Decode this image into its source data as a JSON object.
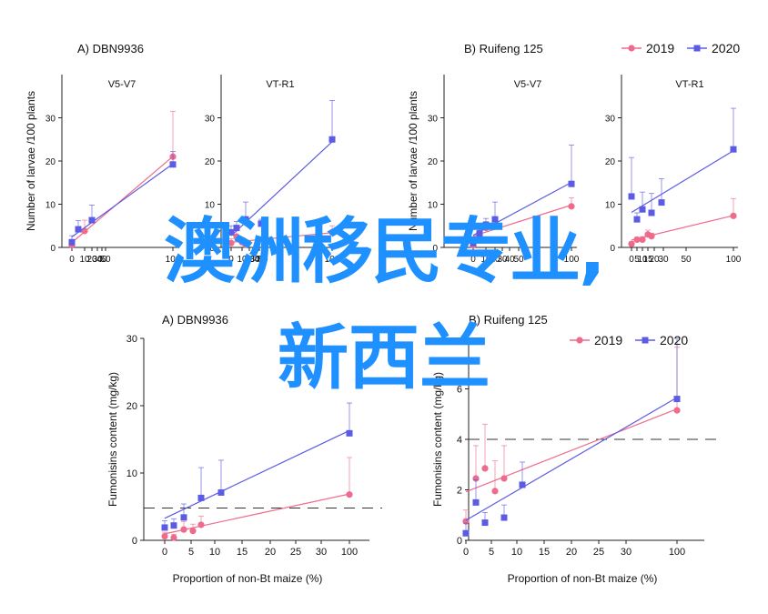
{
  "legend": {
    "items": [
      {
        "label": "2019",
        "color": "#ee6b8b"
      },
      {
        "label": "2020",
        "color": "#5b5be3"
      }
    ]
  },
  "overlay_text": {
    "line1": "澳洲移民专业,",
    "line2": "新西兰"
  },
  "chart_data": [
    {
      "type": "line",
      "panel_label": "A)",
      "panel_title": "DBN9936",
      "subtitle": "V5-V7",
      "ylabel": "Number of larvae /100 plants",
      "ylim": [
        0,
        40
      ],
      "yticks": [
        0,
        10,
        20,
        30
      ],
      "x_ticks": [
        "0",
        "10",
        "20",
        "30",
        "40",
        "50",
        "100"
      ],
      "series": [
        {
          "name": "2019",
          "x": [
            0,
            10,
            100
          ],
          "y": [
            0.5,
            3.8,
            21
          ],
          "err": [
            0.8,
            2.5,
            10.5
          ]
        },
        {
          "name": "2020",
          "x": [
            0,
            5,
            20,
            100
          ],
          "y": [
            1.2,
            4.2,
            6.3,
            19.2
          ],
          "err": [
            1.5,
            2.0,
            3.5,
            3.0
          ]
        }
      ]
    },
    {
      "type": "line",
      "subtitle": "VT-R1",
      "ylim": [
        0,
        40
      ],
      "yticks": [
        0,
        10,
        20,
        30
      ],
      "x_ticks": [
        "0",
        "10",
        "20",
        "30",
        "40",
        "50",
        "100"
      ],
      "series": [
        {
          "name": "2019",
          "x": [
            0,
            5,
            10,
            15,
            100
          ],
          "y": [
            1,
            2.5,
            1.2,
            0.6,
            3.5
          ],
          "err": [
            1,
            1.5,
            1,
            0.5,
            1.5
          ]
        },
        {
          "name": "2020",
          "x": [
            0,
            5,
            15,
            25,
            100
          ],
          "y": [
            3.5,
            4.5,
            6.5,
            5.5,
            25
          ],
          "err": [
            1.5,
            1.5,
            4.0,
            1.0,
            9.0
          ]
        }
      ]
    },
    {
      "type": "line",
      "panel_label": "B)",
      "panel_title": "Ruifeng 125",
      "subtitle": "V5-V7",
      "ylabel": "Number of larvae /100 plants",
      "ylim": [
        0,
        40
      ],
      "yticks": [
        0,
        10,
        20,
        30
      ],
      "x_ticks": [
        "0",
        "10",
        "20",
        "30",
        "40",
        "50",
        "100"
      ],
      "series": [
        {
          "name": "2019",
          "x": [
            0,
            5,
            10,
            20,
            100
          ],
          "y": [
            0.5,
            3.5,
            4.5,
            4.8,
            9.5
          ],
          "err": [
            1,
            1.5,
            1.5,
            1.5,
            2
          ]
        },
        {
          "name": "2020",
          "x": [
            0,
            5,
            10,
            20,
            100
          ],
          "y": [
            1,
            3.2,
            5.2,
            6.5,
            14.7
          ],
          "err": [
            1,
            1.5,
            1.5,
            4,
            9
          ]
        }
      ]
    },
    {
      "type": "line",
      "subtitle": "VT-R1",
      "ylim": [
        0,
        40
      ],
      "yticks": [
        0,
        10,
        20,
        30
      ],
      "x_ticks": [
        "0",
        "5",
        "10",
        "15",
        "20",
        "30",
        "50",
        "100"
      ],
      "series": [
        {
          "name": "2019",
          "x": [
            0,
            2,
            5,
            7,
            10,
            100
          ],
          "y": [
            0.8,
            1.8,
            1.8,
            3.0,
            2.6,
            7.3
          ],
          "err": [
            0.5,
            0.5,
            0.7,
            1.0,
            0.7,
            4
          ]
        },
        {
          "name": "2020",
          "x": [
            0,
            2,
            5,
            10,
            20,
            100
          ],
          "y": [
            11.8,
            6.5,
            8.8,
            8.0,
            10.4,
            22.7
          ],
          "err": [
            9,
            1.5,
            4,
            4.5,
            5.5,
            9.5
          ]
        }
      ]
    },
    {
      "type": "line",
      "panel_label": "A)",
      "panel_title": "DBN9936",
      "ylabel": "Fumonisins content (mg/kg)",
      "xlabel": "Proportion of non-Bt maize (%)",
      "ylim": [
        0,
        30
      ],
      "yticks": [
        0,
        10,
        20,
        30
      ],
      "threshold": 4.8,
      "x_ticks": [
        "0",
        "5",
        "10",
        "15",
        "20",
        "25",
        "30",
        "100"
      ],
      "series": [
        {
          "name": "2019",
          "x": [
            0,
            2,
            5,
            7,
            10,
            100
          ],
          "y": [
            0.6,
            0.4,
            1.6,
            1.4,
            2.3,
            6.8
          ],
          "err": [
            0.6,
            0.5,
            1.2,
            1.0,
            1.3,
            5.5
          ]
        },
        {
          "name": "2020",
          "x": [
            0,
            2,
            5,
            10,
            15,
            100
          ],
          "y": [
            1.9,
            2.2,
            3.4,
            6.3,
            7.1,
            15.9
          ],
          "err": [
            1.0,
            1.0,
            2.0,
            4.5,
            4.8,
            4.5
          ]
        }
      ]
    },
    {
      "type": "line",
      "panel_label": "B)",
      "panel_title": "Ruifeng 125",
      "ylabel": "Fumonisins content (mg/kg)",
      "xlabel": "Proportion of non-Bt maize (%)",
      "ylim": [
        0,
        8
      ],
      "yticks": [
        0,
        2,
        4,
        6
      ],
      "threshold": 4,
      "x_ticks": [
        "0",
        "5",
        "10",
        "15",
        "20",
        "25",
        "30",
        "100"
      ],
      "series": [
        {
          "name": "2019",
          "x": [
            0,
            2,
            5,
            7,
            10,
            100
          ],
          "y": [
            0.75,
            2.45,
            2.85,
            1.95,
            2.45,
            5.15
          ],
          "err": [
            0.45,
            1.3,
            1.75,
            1.2,
            1.3,
            2.5
          ]
        },
        {
          "name": "2020",
          "x": [
            0,
            2,
            5,
            10,
            15,
            100
          ],
          "y": [
            0.28,
            1.5,
            0.7,
            0.9,
            2.2,
            5.6
          ],
          "err": [
            0.4,
            0.9,
            0.4,
            0.5,
            0.9,
            2.7
          ]
        }
      ]
    }
  ]
}
